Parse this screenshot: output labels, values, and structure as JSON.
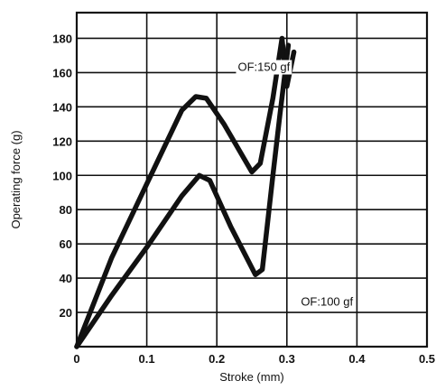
{
  "chart_data": {
    "type": "line",
    "title": "",
    "xlabel": "Stroke (mm)",
    "ylabel": "Operating force (g)",
    "xlim": [
      0,
      0.5
    ],
    "ylim": [
      0,
      195
    ],
    "x_ticks": [
      {
        "value": 0,
        "label": "0"
      },
      {
        "value": 0.1,
        "label": "0.1"
      },
      {
        "value": 0.2,
        "label": "0.2"
      },
      {
        "value": 0.3,
        "label": "0.3"
      },
      {
        "value": 0.4,
        "label": "0.4"
      },
      {
        "value": 0.5,
        "label": "0.5"
      }
    ],
    "y_ticks": [
      {
        "value": 20,
        "label": "20"
      },
      {
        "value": 40,
        "label": "40"
      },
      {
        "value": 60,
        "label": "60"
      },
      {
        "value": 80,
        "label": "80"
      },
      {
        "value": 100,
        "label": "100"
      },
      {
        "value": 120,
        "label": "120"
      },
      {
        "value": 140,
        "label": "140"
      },
      {
        "value": 160,
        "label": "160"
      },
      {
        "value": 180,
        "label": "180"
      }
    ],
    "grid": true,
    "series": [
      {
        "name": "OF:150 gf",
        "points": [
          [
            0,
            0
          ],
          [
            0.05,
            52
          ],
          [
            0.1,
            95
          ],
          [
            0.15,
            138
          ],
          [
            0.17,
            146
          ],
          [
            0.185,
            145
          ],
          [
            0.21,
            130
          ],
          [
            0.25,
            102
          ],
          [
            0.262,
            107
          ],
          [
            0.28,
            145
          ],
          [
            0.293,
            180
          ],
          [
            0.3,
            152
          ],
          [
            0.31,
            172
          ]
        ]
      },
      {
        "name": "OF:100 gf",
        "points": [
          [
            0,
            0
          ],
          [
            0.05,
            30
          ],
          [
            0.1,
            58
          ],
          [
            0.15,
            88
          ],
          [
            0.175,
            100
          ],
          [
            0.19,
            97
          ],
          [
            0.22,
            70
          ],
          [
            0.255,
            42
          ],
          [
            0.265,
            45
          ],
          [
            0.28,
            100
          ],
          [
            0.29,
            135
          ],
          [
            0.302,
            176
          ]
        ]
      }
    ],
    "annotations": [
      {
        "text": "OF:150 gf",
        "x": 0.23,
        "y": 161
      },
      {
        "text": "OF:100 gf",
        "x": 0.32,
        "y": 24
      }
    ],
    "colors": {
      "line": "#111111",
      "background": "#ffffff"
    }
  }
}
